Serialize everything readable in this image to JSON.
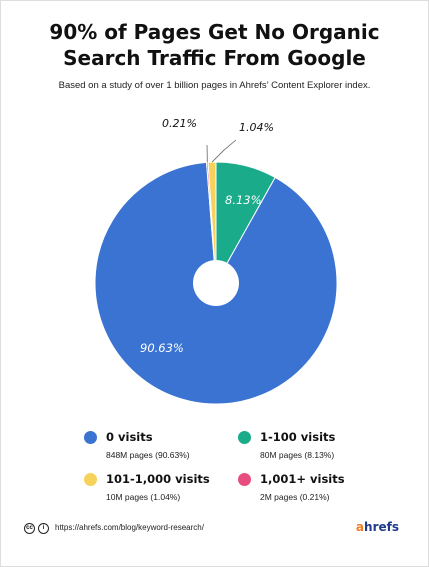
{
  "header": {
    "title_line1": "90% of Pages Get No Organic",
    "title_line2": "Search Traffic From Google",
    "subtitle": "Based on a study of over 1 billion pages in Ahrefs’ Content Explorer index."
  },
  "chart_data": {
    "type": "pie",
    "donut": true,
    "title": "90% of Pages Get No Organic Search Traffic From Google",
    "subtitle": "Based on a study of over 1 billion pages in Ahrefs’ Content Explorer index.",
    "slices": [
      {
        "name": "0 visits",
        "value": 90.63,
        "label": "90.63%",
        "pages": "848M pages (90.63%)",
        "color": "#3a73d2"
      },
      {
        "name": "1-100 visits",
        "value": 8.13,
        "label": "8.13%",
        "pages": "80M pages (8.13%)",
        "color": "#1aab8a"
      },
      {
        "name": "101-1,000 visits",
        "value": 1.04,
        "label": "1.04%",
        "pages": "10M pages (1.04%)",
        "color": "#f6d25b"
      },
      {
        "name": "1,001+ visits",
        "value": 0.21,
        "label": "0.21%",
        "pages": "2M pages (0.21%)",
        "color": "#e84d7f"
      }
    ],
    "legend_position": "bottom"
  },
  "footer": {
    "url": "https://ahrefs.com/blog/keyword-research/",
    "cc_icon": "cc-icon",
    "by_icon": "attribution-icon",
    "brand_a": "a",
    "brand_rest": "hrefs"
  }
}
